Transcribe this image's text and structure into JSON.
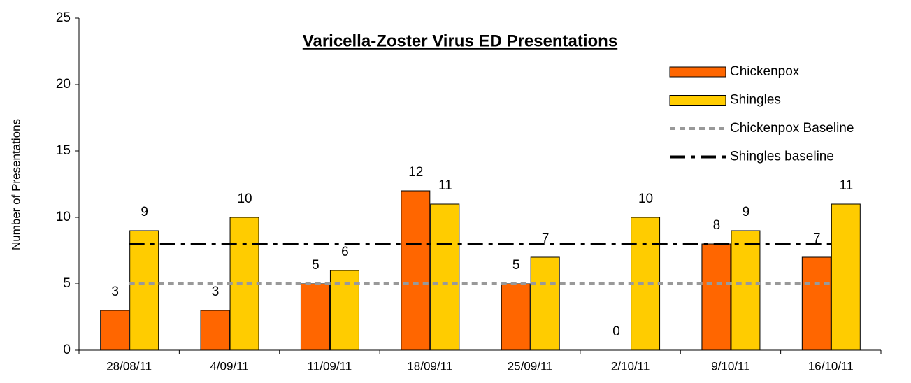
{
  "chart_data": {
    "type": "bar",
    "title": "Varicella-Zoster Virus ED Presentations",
    "y_label": "Number of Presentations",
    "categories": [
      "28/08/11",
      "4/09/11",
      "11/09/11",
      "18/09/11",
      "25/09/11",
      "2/10/11",
      "9/10/11",
      "16/10/11"
    ],
    "series": [
      {
        "name": "Chickenpox",
        "type": "bar",
        "color": "#ff6600",
        "values": [
          3,
          3,
          5,
          12,
          5,
          0,
          8,
          7
        ]
      },
      {
        "name": "Shingles",
        "type": "bar",
        "color": "#ffcc00",
        "values": [
          9,
          10,
          6,
          11,
          7,
          10,
          9,
          11
        ]
      },
      {
        "name": "Chickenpox Baseline",
        "type": "line",
        "line_style": "dashed",
        "color": "#999999",
        "values": [
          5,
          5,
          5,
          5,
          5,
          5,
          5,
          5
        ]
      },
      {
        "name": "Shingles baseline",
        "type": "line",
        "line_style": "dashdot",
        "color": "#000000",
        "values": [
          8,
          8,
          8,
          8,
          8,
          8,
          8,
          8
        ]
      }
    ],
    "ylim": [
      0,
      25
    ],
    "yticks": [
      0,
      5,
      10,
      15,
      20,
      25
    ],
    "grid": false,
    "legend": "upper right"
  }
}
